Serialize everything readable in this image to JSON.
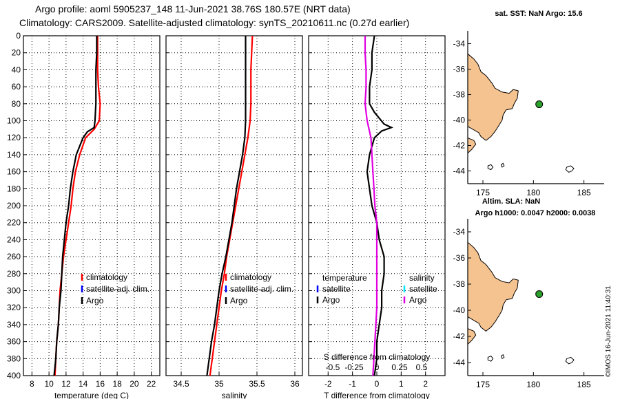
{
  "header": {
    "line1": "Argo profile: aoml 5905237_148 11-Jun-2021 38.76S 180.57E (NRT data)",
    "line2": "Climatology: CARS2009. Satellite-adjusted climatology: synTS_20210611.nc (0.27d earlier)"
  },
  "watermark": "©IMOS 16-Jun-2021 11:40:31",
  "colors": {
    "climatology": "#ff0000",
    "satellite": "#0000ff",
    "argo": "#000000",
    "sat_sal": "#00e5ff",
    "salinity_diff": "#e000e0",
    "land": "#f5c38f",
    "float": "#2ca02c"
  },
  "chart_data": [
    {
      "type": "line",
      "id": "temperature",
      "xlabel": "temperature (deg C)",
      "ylabel": "",
      "xlim": [
        7,
        23
      ],
      "ylim": [
        400,
        0
      ],
      "xticks": [
        "8",
        "10",
        "12",
        "14",
        "16",
        "18",
        "20",
        "22"
      ],
      "xtick_values": [
        8,
        10,
        12,
        14,
        16,
        18,
        20,
        22
      ],
      "yticks": [
        "0",
        "20",
        "40",
        "60",
        "80",
        "100",
        "120",
        "140",
        "160",
        "180",
        "200",
        "220",
        "240",
        "260",
        "280",
        "300",
        "320",
        "340",
        "360",
        "380",
        "400"
      ],
      "legend": [
        "climatology",
        "satellite-adj. clim.",
        "Argo"
      ],
      "series": [
        {
          "name": "climatology",
          "color": "#ff0000",
          "points": [
            [
              15.7,
              0
            ],
            [
              15.7,
              20
            ],
            [
              15.7,
              40
            ],
            [
              15.8,
              60
            ],
            [
              16.0,
              80
            ],
            [
              15.9,
              100
            ],
            [
              15.3,
              110
            ],
            [
              14.3,
              120
            ],
            [
              13.6,
              140
            ],
            [
              13.1,
              160
            ],
            [
              12.8,
              180
            ],
            [
              12.6,
              200
            ],
            [
              12.3,
              220
            ],
            [
              12.0,
              240
            ],
            [
              11.7,
              260
            ],
            [
              11.5,
              280
            ],
            [
              11.3,
              300
            ],
            [
              11.2,
              320
            ],
            [
              11.1,
              340
            ],
            [
              10.9,
              360
            ],
            [
              10.8,
              380
            ],
            [
              10.7,
              400
            ]
          ]
        },
        {
          "name": "Argo",
          "color": "#000000",
          "points": [
            [
              15.6,
              0
            ],
            [
              15.6,
              20
            ],
            [
              15.5,
              40
            ],
            [
              15.5,
              60
            ],
            [
              15.5,
              80
            ],
            [
              15.4,
              100
            ],
            [
              15.3,
              108
            ],
            [
              14.5,
              113
            ],
            [
              14.0,
              120
            ],
            [
              13.2,
              140
            ],
            [
              12.8,
              160
            ],
            [
              12.5,
              180
            ],
            [
              12.3,
              200
            ],
            [
              12.0,
              220
            ],
            [
              11.8,
              240
            ],
            [
              11.6,
              260
            ],
            [
              11.5,
              280
            ],
            [
              11.4,
              300
            ],
            [
              11.2,
              320
            ],
            [
              11.1,
              340
            ],
            [
              10.9,
              360
            ],
            [
              10.8,
              380
            ],
            [
              10.6,
              400
            ]
          ]
        }
      ]
    },
    {
      "type": "line",
      "id": "salinity",
      "xlabel": "salinity",
      "xlim": [
        34.3,
        36.1
      ],
      "ylim": [
        400,
        0
      ],
      "xticks": [
        "34.5",
        "35",
        "35.5",
        "36"
      ],
      "xtick_values": [
        34.5,
        35,
        35.5,
        36
      ],
      "legend": [
        "climatology",
        "satellite-adj. clim.",
        "Argo"
      ],
      "series": [
        {
          "name": "climatology",
          "color": "#ff0000",
          "points": [
            [
              35.44,
              0
            ],
            [
              35.43,
              20
            ],
            [
              35.42,
              40
            ],
            [
              35.42,
              60
            ],
            [
              35.42,
              80
            ],
            [
              35.41,
              100
            ],
            [
              35.38,
              120
            ],
            [
              35.34,
              140
            ],
            [
              35.3,
              160
            ],
            [
              35.26,
              180
            ],
            [
              35.22,
              200
            ],
            [
              35.18,
              220
            ],
            [
              35.14,
              240
            ],
            [
              35.1,
              260
            ],
            [
              35.07,
              280
            ],
            [
              35.03,
              300
            ],
            [
              35.0,
              320
            ],
            [
              34.97,
              340
            ],
            [
              34.94,
              360
            ],
            [
              34.91,
              380
            ],
            [
              34.88,
              400
            ]
          ]
        },
        {
          "name": "Argo",
          "color": "#000000",
          "points": [
            [
              35.35,
              0
            ],
            [
              35.35,
              20
            ],
            [
              35.35,
              40
            ],
            [
              35.35,
              60
            ],
            [
              35.35,
              80
            ],
            [
              35.35,
              100
            ],
            [
              35.34,
              120
            ],
            [
              35.31,
              140
            ],
            [
              35.27,
              160
            ],
            [
              35.23,
              180
            ],
            [
              35.2,
              200
            ],
            [
              35.17,
              220
            ],
            [
              35.13,
              240
            ],
            [
              35.09,
              260
            ],
            [
              35.04,
              280
            ],
            [
              35.0,
              300
            ],
            [
              34.97,
              320
            ],
            [
              34.94,
              340
            ],
            [
              34.9,
              360
            ],
            [
              34.87,
              380
            ],
            [
              34.84,
              400
            ]
          ]
        }
      ]
    },
    {
      "type": "line",
      "id": "difference",
      "xlabel": "T difference from climatology",
      "xlabel_top": "S difference from climatology",
      "xlim": [
        -2.8,
        2.8
      ],
      "ylim": [
        400,
        0
      ],
      "xticks": [
        "-2",
        "-1",
        "0",
        "1",
        "2"
      ],
      "xtick_values": [
        -2,
        -1,
        0,
        1,
        2
      ],
      "s_xticks": [
        "-0.5",
        "-0.25",
        "0",
        "0.25",
        "0.5"
      ],
      "s_xtick_values": [
        -0.5,
        -0.25,
        0,
        0.25,
        0.5
      ],
      "legend_left_title": "temperature",
      "legend_right_title": "salinity",
      "legend_left": [
        "satellite",
        "Argo"
      ],
      "legend_right": [
        "satellite",
        "Argo"
      ],
      "series": [
        {
          "name": "T difference Argo",
          "color": "#000000",
          "points": [
            [
              -0.1,
              0
            ],
            [
              -0.2,
              20
            ],
            [
              -0.2,
              40
            ],
            [
              -0.3,
              60
            ],
            [
              -0.3,
              80
            ],
            [
              -0.1,
              90
            ],
            [
              0.3,
              104
            ],
            [
              0.6,
              108
            ],
            [
              0.2,
              112
            ],
            [
              -0.1,
              120
            ],
            [
              -0.3,
              140
            ],
            [
              -0.4,
              160
            ],
            [
              -0.3,
              180
            ],
            [
              -0.2,
              200
            ],
            [
              0.0,
              220
            ],
            [
              0.1,
              240
            ],
            [
              0.3,
              260
            ],
            [
              0.3,
              280
            ],
            [
              0.2,
              300
            ],
            [
              0.2,
              320
            ],
            [
              0.1,
              340
            ],
            [
              0.0,
              360
            ],
            [
              0.0,
              380
            ],
            [
              -0.1,
              400
            ]
          ]
        },
        {
          "name": "S difference Argo",
          "color": "#e000e0",
          "points": [
            [
              -0.12,
              0
            ],
            [
              -0.12,
              20
            ],
            [
              -0.11,
              40
            ],
            [
              -0.11,
              60
            ],
            [
              -0.12,
              80
            ],
            [
              -0.1,
              100
            ],
            [
              -0.06,
              120
            ],
            [
              -0.05,
              140
            ],
            [
              -0.04,
              160
            ],
            [
              -0.03,
              180
            ],
            [
              -0.02,
              200
            ],
            [
              0.0,
              220
            ],
            [
              0.0,
              240
            ],
            [
              0.0,
              260
            ],
            [
              0.0,
              280
            ],
            [
              0.0,
              300
            ],
            [
              0.0,
              320
            ],
            [
              -0.01,
              340
            ],
            [
              -0.02,
              360
            ],
            [
              -0.03,
              380
            ],
            [
              -0.04,
              400
            ]
          ]
        }
      ]
    },
    {
      "type": "map",
      "id": "map-sst",
      "title": "sat. SST: NaN Argo: 15.6",
      "xlim": [
        173.5,
        187
      ],
      "ylim": [
        -45,
        -33
      ],
      "xticks": [
        "175",
        "180",
        "185"
      ],
      "xtick_values": [
        175,
        180,
        185
      ],
      "yticks": [
        "-34",
        "-36",
        "-38",
        "-40",
        "-42",
        "-44"
      ],
      "ytick_values": [
        -34,
        -36,
        -38,
        -40,
        -42,
        -44
      ],
      "float": [
        180.57,
        -38.76
      ]
    },
    {
      "type": "map",
      "id": "map-sla",
      "title_line1": "Altim. SLA: NaN",
      "title_line2": "Argo h1000: 0.0047 h2000: 0.0038",
      "xlim": [
        173.5,
        187
      ],
      "ylim": [
        -45,
        -33
      ],
      "xticks": [
        "175",
        "180",
        "185"
      ],
      "xtick_values": [
        175,
        180,
        185
      ],
      "yticks": [
        "-34",
        "-36",
        "-38",
        "-40",
        "-42",
        "-44"
      ],
      "ytick_values": [
        -34,
        -36,
        -38,
        -40,
        -42,
        -44
      ],
      "float": [
        180.57,
        -38.76
      ]
    }
  ]
}
